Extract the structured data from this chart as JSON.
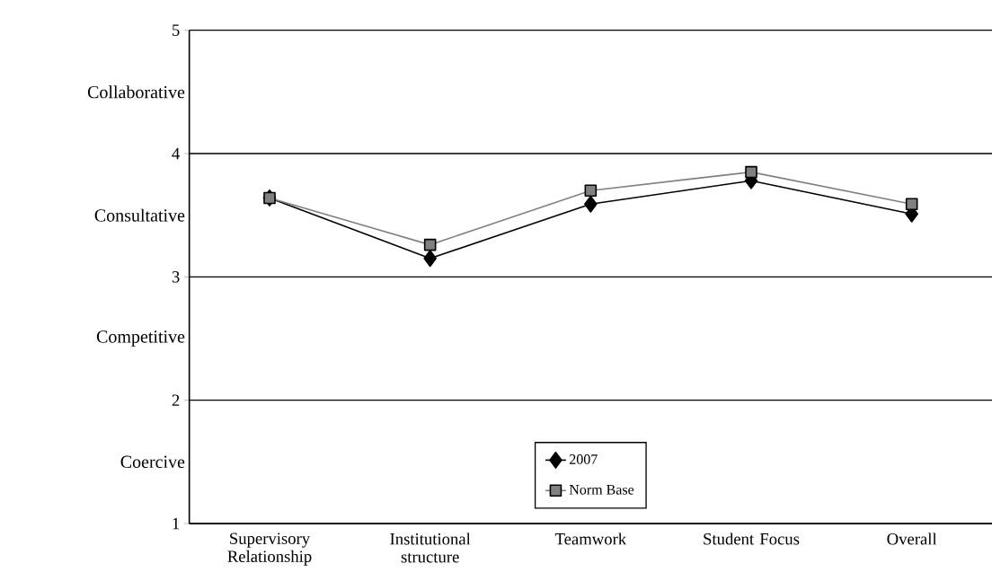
{
  "chart_data": {
    "type": "line",
    "categories": [
      "Supervisory Relationship",
      "Institutional structure",
      "Teamwork",
      "Student Focus",
      "Overall"
    ],
    "series": [
      {
        "name": "2007",
        "color": "#000000",
        "marker": "diamond",
        "values": [
          3.64,
          3.15,
          3.59,
          3.78,
          3.51
        ]
      },
      {
        "name": "Norm Base",
        "color": "#808080",
        "marker": "square",
        "values": [
          3.64,
          3.26,
          3.7,
          3.85,
          3.59
        ]
      }
    ],
    "ylim": [
      1,
      5
    ],
    "yticks": [
      1,
      {
        "value": 1.5,
        "label": "Coercive"
      },
      2,
      {
        "value": 2.5,
        "label": "Competitive"
      },
      3,
      {
        "value": 3.5,
        "label": "Consultative"
      },
      4,
      {
        "value": 4.5,
        "label": "Collaborative"
      },
      5
    ],
    "grid": "y",
    "legend": "bottom",
    "line_style": "solid"
  }
}
